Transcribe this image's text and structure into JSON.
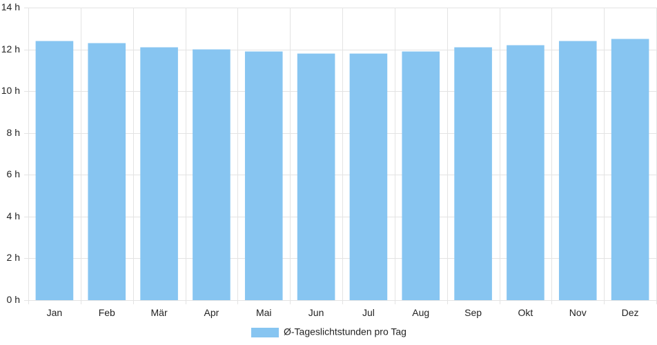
{
  "chart_data": {
    "type": "bar",
    "categories": [
      "Jan",
      "Feb",
      "Mär",
      "Apr",
      "Mai",
      "Jun",
      "Jul",
      "Aug",
      "Sep",
      "Okt",
      "Nov",
      "Dez"
    ],
    "series": [
      {
        "name": "Ø-Tageslichtstunden pro Tag",
        "color": "#87c5f1",
        "values": [
          12.4,
          12.3,
          12.1,
          12.0,
          11.9,
          11.8,
          11.8,
          11.9,
          12.1,
          12.2,
          12.4,
          12.5
        ]
      }
    ],
    "ylim": [
      0,
      14
    ],
    "yticks": [
      "0 h",
      "2 h",
      "4 h",
      "6 h",
      "8 h",
      "10 h",
      "12 h",
      "14 h"
    ],
    "ytick_values": [
      0,
      2,
      4,
      6,
      8,
      10,
      12,
      14
    ],
    "grid": true,
    "legend": "bottom-center",
    "title": "",
    "xlabel": "",
    "ylabel": ""
  }
}
